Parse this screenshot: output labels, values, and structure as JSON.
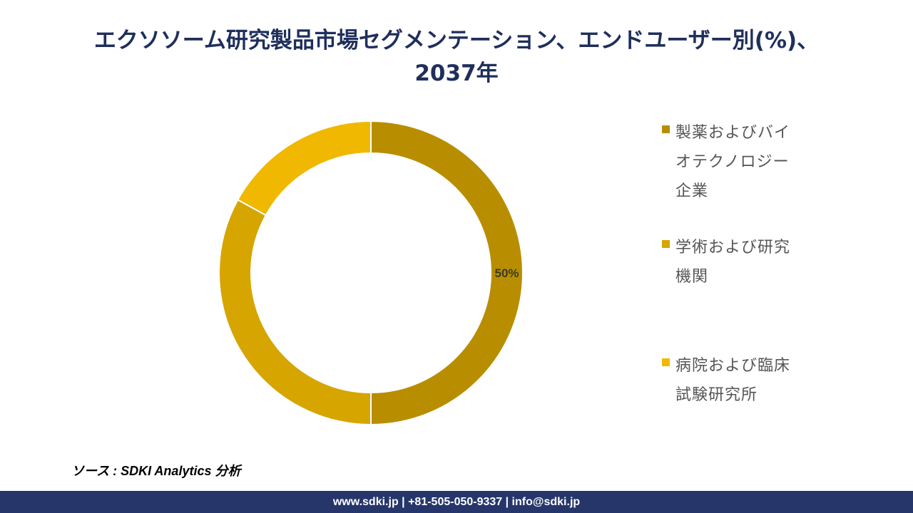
{
  "title_line1": "エクソソーム研究製品市場セグメンテーション、エンドユーザー別(%)、",
  "title_line2": "2037年",
  "chart_data": {
    "type": "pie",
    "donut": true,
    "title": "エクソソーム研究製品市場セグメンテーション、エンドユーザー別(%)、2037年",
    "categories": [
      "製薬およびバイオテクノロジー企業",
      "学術および研究機関",
      "病院および臨床試験研究所"
    ],
    "values": [
      50,
      33,
      17
    ],
    "data_labels": [
      "50%",
      "",
      ""
    ],
    "colors": [
      "#b88e00",
      "#d6a500",
      "#f0b800"
    ],
    "legend": "right"
  },
  "source": "ソース : SDKI Analytics 分析",
  "footer": "www.sdki.jp | +81-505-050-9337 | info@sdki.jp"
}
